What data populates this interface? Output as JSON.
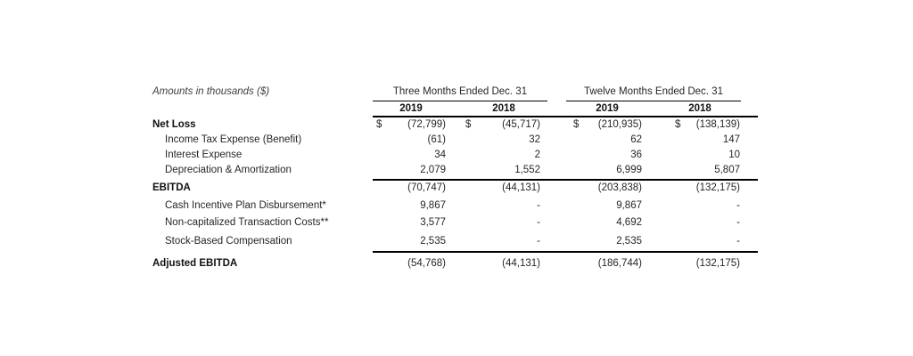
{
  "caption": "Amounts in thousands ($)",
  "period_headers": [
    "Three Months Ended Dec. 31",
    "Twelve Months Ended Dec. 31"
  ],
  "year_headers": [
    "2019",
    "2018",
    "2019",
    "2018"
  ],
  "currency_symbol": "$",
  "rows": [
    {
      "label": "Net Loss",
      "values": [
        "(72,799)",
        "(45,717)",
        "(210,935)",
        "(138,139)"
      ],
      "bold": true,
      "indent": false,
      "dollar": true
    },
    {
      "label": "Income Tax Expense (Benefit)",
      "values": [
        "(61)",
        "32",
        "62",
        "147"
      ],
      "bold": false,
      "indent": true,
      "dollar": false
    },
    {
      "label": "Interest Expense",
      "values": [
        "34",
        "2",
        "36",
        "10"
      ],
      "bold": false,
      "indent": true,
      "dollar": false
    },
    {
      "label": "Depreciation & Amortization",
      "values": [
        "2,079",
        "1,552",
        "6,999",
        "5,807"
      ],
      "bold": false,
      "indent": true,
      "dollar": false
    },
    {
      "label": "EBITDA",
      "values": [
        "(70,747)",
        "(44,131)",
        "(203,838)",
        "(132,175)"
      ],
      "bold": true,
      "indent": false,
      "dollar": false
    },
    {
      "label": "Cash Incentive Plan Disbursement*",
      "values": [
        "9,867",
        "-",
        "9,867",
        "-"
      ],
      "bold": false,
      "indent": true,
      "dollar": false
    },
    {
      "label": "Non-capitalized Transaction Costs**",
      "values": [
        "3,577",
        "-",
        "4,692",
        "-"
      ],
      "bold": false,
      "indent": true,
      "dollar": false
    },
    {
      "label": "Stock-Based Compensation",
      "values": [
        "2,535",
        "-",
        "2,535",
        "-"
      ],
      "bold": false,
      "indent": true,
      "dollar": false
    },
    {
      "label": "Adjusted EBITDA",
      "values": [
        "(54,768)",
        "(44,131)",
        "(186,744)",
        "(132,175)"
      ],
      "bold": true,
      "indent": false,
      "dollar": false
    }
  ]
}
